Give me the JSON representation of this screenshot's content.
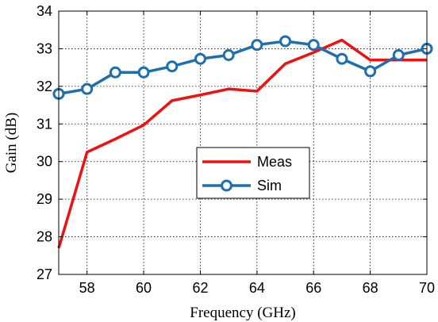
{
  "chart_data": {
    "type": "line",
    "xlabel": "Frequency (GHz)",
    "ylabel": "Gain (dB)",
    "xlim": [
      57,
      70
    ],
    "ylim": [
      27,
      34
    ],
    "xticks": [
      58,
      60,
      62,
      64,
      66,
      68,
      70
    ],
    "yticks": [
      27,
      28,
      29,
      30,
      31,
      32,
      33,
      34
    ],
    "grid": true,
    "legend_position": "center",
    "series": [
      {
        "name": "Meas",
        "color": "#ee1111",
        "marker": "none",
        "x": [
          57,
          58,
          59,
          60,
          61,
          62,
          63,
          64,
          65,
          66,
          67,
          68,
          69,
          70
        ],
        "y": [
          27.7,
          30.25,
          30.6,
          30.97,
          31.62,
          31.77,
          31.93,
          31.87,
          32.6,
          32.9,
          33.23,
          32.7,
          32.7,
          32.7
        ]
      },
      {
        "name": "Sim",
        "color": "#1f6fae",
        "marker": "circle",
        "x": [
          57,
          58,
          59,
          60,
          61,
          62,
          63,
          64,
          65,
          66,
          67,
          68,
          69,
          70
        ],
        "y": [
          31.8,
          31.93,
          32.37,
          32.37,
          32.53,
          32.73,
          32.83,
          33.1,
          33.2,
          33.1,
          32.73,
          32.4,
          32.83,
          33.0
        ]
      }
    ]
  }
}
